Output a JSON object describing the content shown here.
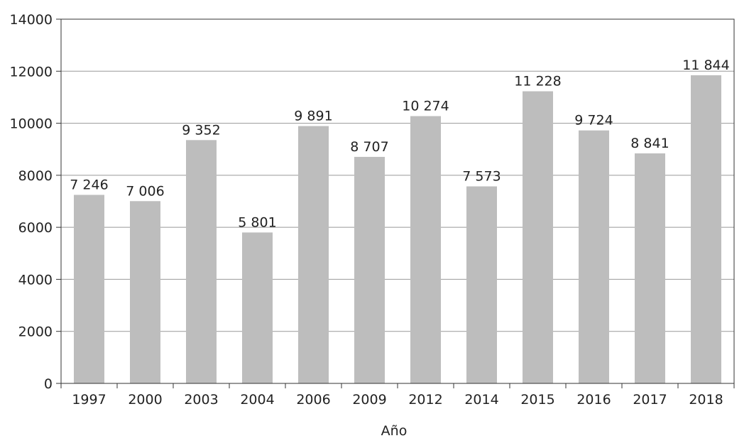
{
  "chart_data": {
    "type": "bar",
    "categories": [
      "1997",
      "2000",
      "2003",
      "2004",
      "2006",
      "2009",
      "2012",
      "2014",
      "2015",
      "2016",
      "2017",
      "2018"
    ],
    "values": [
      7246,
      7006,
      9352,
      5801,
      9891,
      8707,
      10274,
      7573,
      11228,
      9724,
      8841,
      11844
    ],
    "value_labels": [
      "7 246",
      "7 006",
      "9 352",
      "5 801",
      "9 891",
      "8 707",
      "10 274",
      "7 573",
      "11 228",
      "9 724",
      "8 841",
      "11 844"
    ],
    "title": "",
    "xlabel": "Año",
    "ylabel": "",
    "ylim": [
      0,
      14000
    ],
    "yticks": [
      0,
      2000,
      4000,
      6000,
      8000,
      10000,
      12000,
      14000
    ],
    "ytick_labels": [
      "0",
      "2000",
      "4000",
      "6000",
      "8000",
      "10000",
      "12000",
      "14000"
    ],
    "grid": true,
    "bar_color": "#bdbdbd",
    "grid_color": "#999999",
    "axis_color": "#333333"
  }
}
